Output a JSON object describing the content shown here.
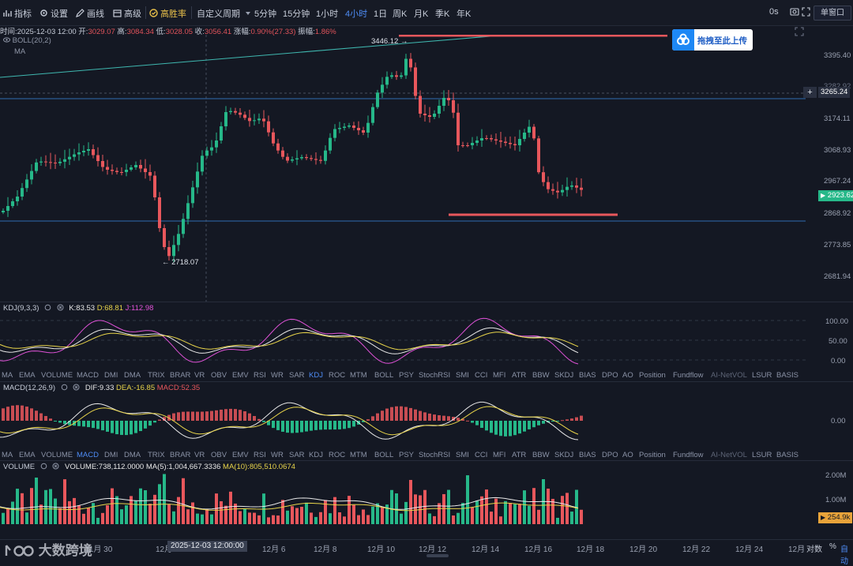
{
  "toolbar": {
    "indicators": "指标",
    "settings": "设置",
    "drawing": "画线",
    "advanced": "高级",
    "win_rate": "高胜率",
    "custom_period": "自定义周期",
    "periods": [
      "5分钟",
      "15分钟",
      "1小时",
      "4小时",
      "1日",
      "周K",
      "月K",
      "季K",
      "年K"
    ],
    "active_period": "4小时",
    "countdown": "0s",
    "window_mode": "单窗口"
  },
  "ohlc": {
    "time_label": "时间:",
    "time": "2025-12-03 12:00",
    "open_label": "开:",
    "open": "3029.07",
    "high_label": "高:",
    "high": "3084.34",
    "low_label": "低:",
    "low": "3028.05",
    "close_label": "收:",
    "close": "3056.41",
    "change_label": "涨幅:",
    "change": "0.90%(27.33)",
    "amplitude_label": "振幅:",
    "amplitude": "1.86%"
  },
  "main_legend": {
    "boll": "BOLL(20,2)",
    "ma": "MA"
  },
  "price_axis": {
    "ticks": [
      "3395.40",
      "3174.11",
      "3068.93",
      "2967.24",
      "2868.92",
      "2773.85",
      "2681.94"
    ],
    "partial_tick": "3282.92",
    "crosshair_price": "3265.24",
    "last_price": "2923.62",
    "high_marker": "3446.12",
    "low_marker": "2718.07"
  },
  "upload_button": "拖拽至此上传",
  "kdj": {
    "name": "KDJ(9,3,3)",
    "k": "K:83.53",
    "d": "D:68.81",
    "j": "J:112.98",
    "axis": [
      "100.00",
      "50.00",
      "0.00"
    ]
  },
  "macd": {
    "name": "MACD(12,26,9)",
    "dif": "DIF:9.33",
    "dea": "DEA:-16.85",
    "macd": "MACD:52.35",
    "axis": [
      "0.00"
    ]
  },
  "volume": {
    "name": "VOLUME",
    "vol": "VOLUME:738,112.0000",
    "ma5": "MA(5):1,004,667.3336",
    "ma10": "MA(10):805,510.0674",
    "axis": [
      "2.00M",
      "1.00M"
    ],
    "last": "254.9k"
  },
  "indicator_tabs": [
    "MA",
    "EMA",
    "VOLUME",
    "MACD",
    "DMI",
    "DMA",
    "TRIX",
    "BRAR",
    "VR",
    "OBV",
    "EMV",
    "RSI",
    "WR",
    "SAR",
    "KDJ",
    "ROC",
    "MTM",
    "BOLL",
    "PSY",
    "StochRSI",
    "SMI",
    "CCI",
    "MFI",
    "ATR",
    "BBW",
    "SKDJ",
    "BIAS",
    "DPO",
    "AO",
    "Position",
    "Fundflow",
    "AI-NetVOL",
    "LSUR",
    "BASIS"
  ],
  "tabs_selected": {
    "row1": "KDJ",
    "row2": "MACD",
    "row3": "VOLUME"
  },
  "date_axis": {
    "labels": [
      "11月 30",
      "12月",
      "12月 6",
      "12月 8",
      "12月 10",
      "12月 12",
      "12月 14",
      "12月 16",
      "12月 18",
      "12月 20",
      "12月 22",
      "12月 24",
      "12月"
    ],
    "crosshair_date": "2025-12-03 12:00:00",
    "log_label": "对数",
    "percent_label": "%",
    "auto_label": "自动"
  },
  "watermark": "大数跨境",
  "colors": {
    "up": "#26b889",
    "down": "#e8575c",
    "accent": "#4e8cf5",
    "bg": "#141823"
  }
}
